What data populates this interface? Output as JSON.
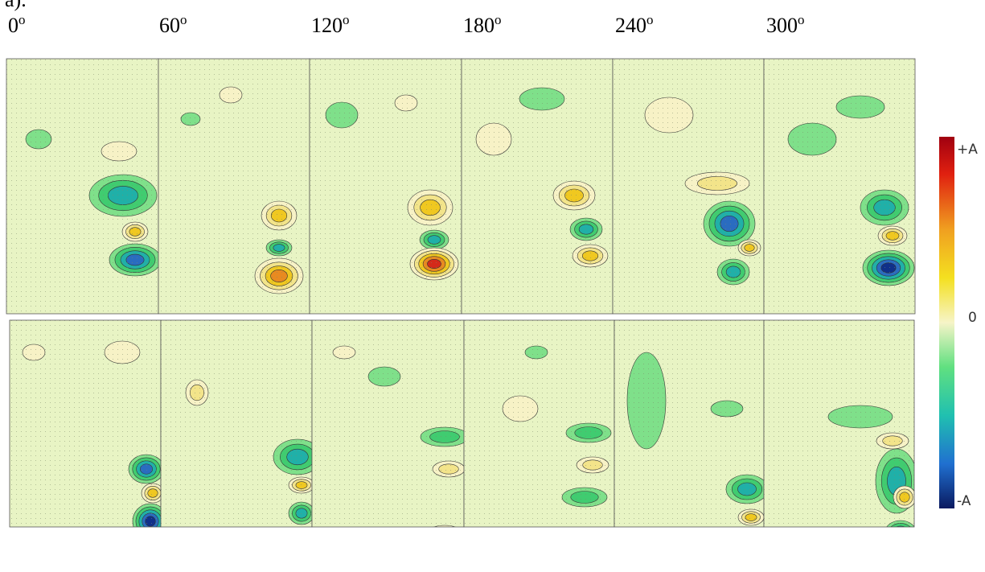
{
  "figure": {
    "label": "a).",
    "phases": [
      {
        "value": "0",
        "sup": "o"
      },
      {
        "value": "60",
        "sup": "o"
      },
      {
        "value": "120",
        "sup": "o"
      },
      {
        "value": "180",
        "sup": "o"
      },
      {
        "value": "240",
        "sup": "o"
      },
      {
        "value": "300",
        "sup": "o"
      }
    ],
    "colorbar": {
      "top": "+A",
      "middle": "0",
      "bottom": "-A"
    }
  }
}
